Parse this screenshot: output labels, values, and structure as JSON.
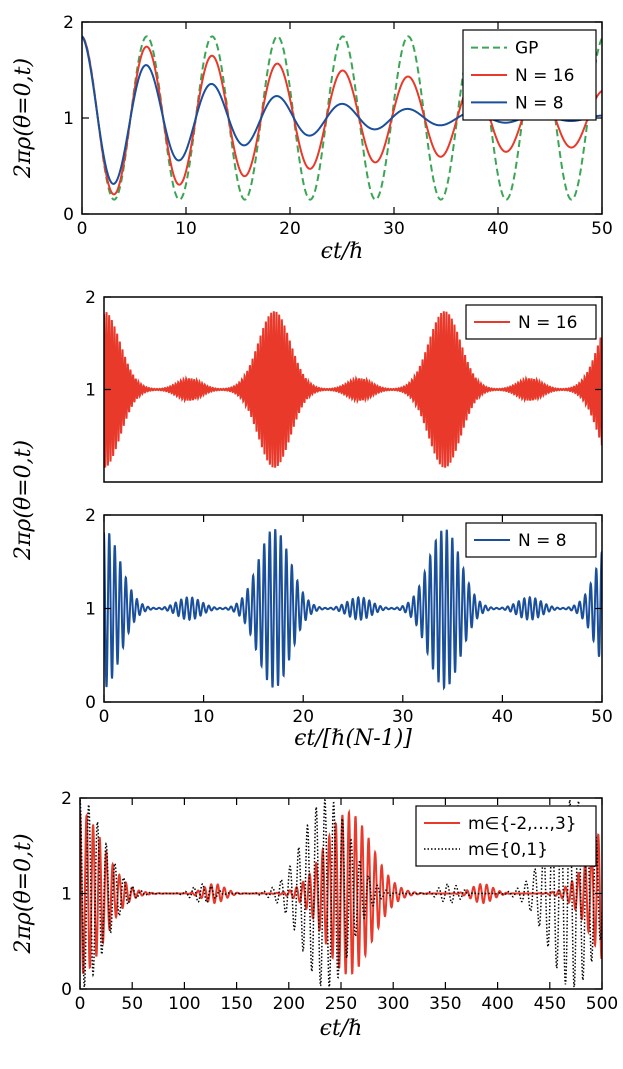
{
  "chart_data": [
    {
      "type": "line",
      "xlabel": "ϵt/ℏ",
      "ylabel": "2πρ(θ=0,t)",
      "xlim": [
        0,
        50
      ],
      "ylim": [
        0,
        2
      ],
      "x_ticks": [
        "0",
        "10",
        "20",
        "30",
        "40",
        "50"
      ],
      "y_ticks": [
        "0",
        "1",
        "2"
      ],
      "legend_position": "top-right",
      "series": [
        {
          "name": "GP",
          "color": "#3aa655",
          "style": "dashed",
          "omega": 1.0,
          "amp0": 0.85,
          "decay": 0.0
        },
        {
          "name": "N = 16",
          "color": "#e8392a",
          "style": "solid",
          "omega": 1.0,
          "amp0": 0.85,
          "decay": 0.018
        },
        {
          "name": "N = 8",
          "color": "#1a4f9c",
          "style": "solid",
          "omega": 1.0,
          "amp0": 0.85,
          "decay": 0.07
        }
      ]
    },
    {
      "type": "line",
      "xlabel": "",
      "ylabel": "2πρ(θ=0,t)",
      "xlim": [
        0,
        50
      ],
      "ylim": [
        0,
        2
      ],
      "x_ticks": [],
      "y_ticks": [
        "1",
        "2"
      ],
      "legend_position": "top-right",
      "series": [
        {
          "name": "N = 16",
          "color": "#e8392a",
          "style": "solid",
          "period": 17.1,
          "amp0": 0.85,
          "carrier": 7.5
        }
      ]
    },
    {
      "type": "line",
      "xlabel": "ϵt/[ℏ(N-1)]",
      "ylabel": "2πρ(θ=0,t)",
      "xlim": [
        0,
        50
      ],
      "ylim": [
        0,
        2
      ],
      "x_ticks": [
        "0",
        "10",
        "20",
        "30",
        "40",
        "50"
      ],
      "y_ticks": [
        "0",
        "1",
        "2"
      ],
      "legend_position": "top-right",
      "series": [
        {
          "name": "N = 8",
          "color": "#1a4f9c",
          "style": "solid",
          "period": 17.1,
          "amp0": 0.85,
          "carrier": 3.6
        }
      ]
    },
    {
      "type": "line",
      "xlabel": "ϵt/ℏ",
      "ylabel": "2πρ(θ=0,t)",
      "xlim": [
        0,
        500
      ],
      "ylim": [
        0,
        2
      ],
      "x_ticks": [
        "0",
        "50",
        "100",
        "150",
        "200",
        "250",
        "300",
        "350",
        "400",
        "450",
        "500"
      ],
      "y_ticks": [
        "0",
        "1",
        "2"
      ],
      "legend_position": "top-right",
      "series": [
        {
          "name": "m∈{-2,…,3}",
          "color": "#e8392a",
          "style": "solid",
          "period": 257,
          "amp0": 0.85,
          "carrier": 1.0
        },
        {
          "name": "m∈{0,1}",
          "color": "#000000",
          "style": "dotted",
          "period": 236,
          "amp0": 1.0,
          "carrier": 0.75
        }
      ]
    }
  ]
}
